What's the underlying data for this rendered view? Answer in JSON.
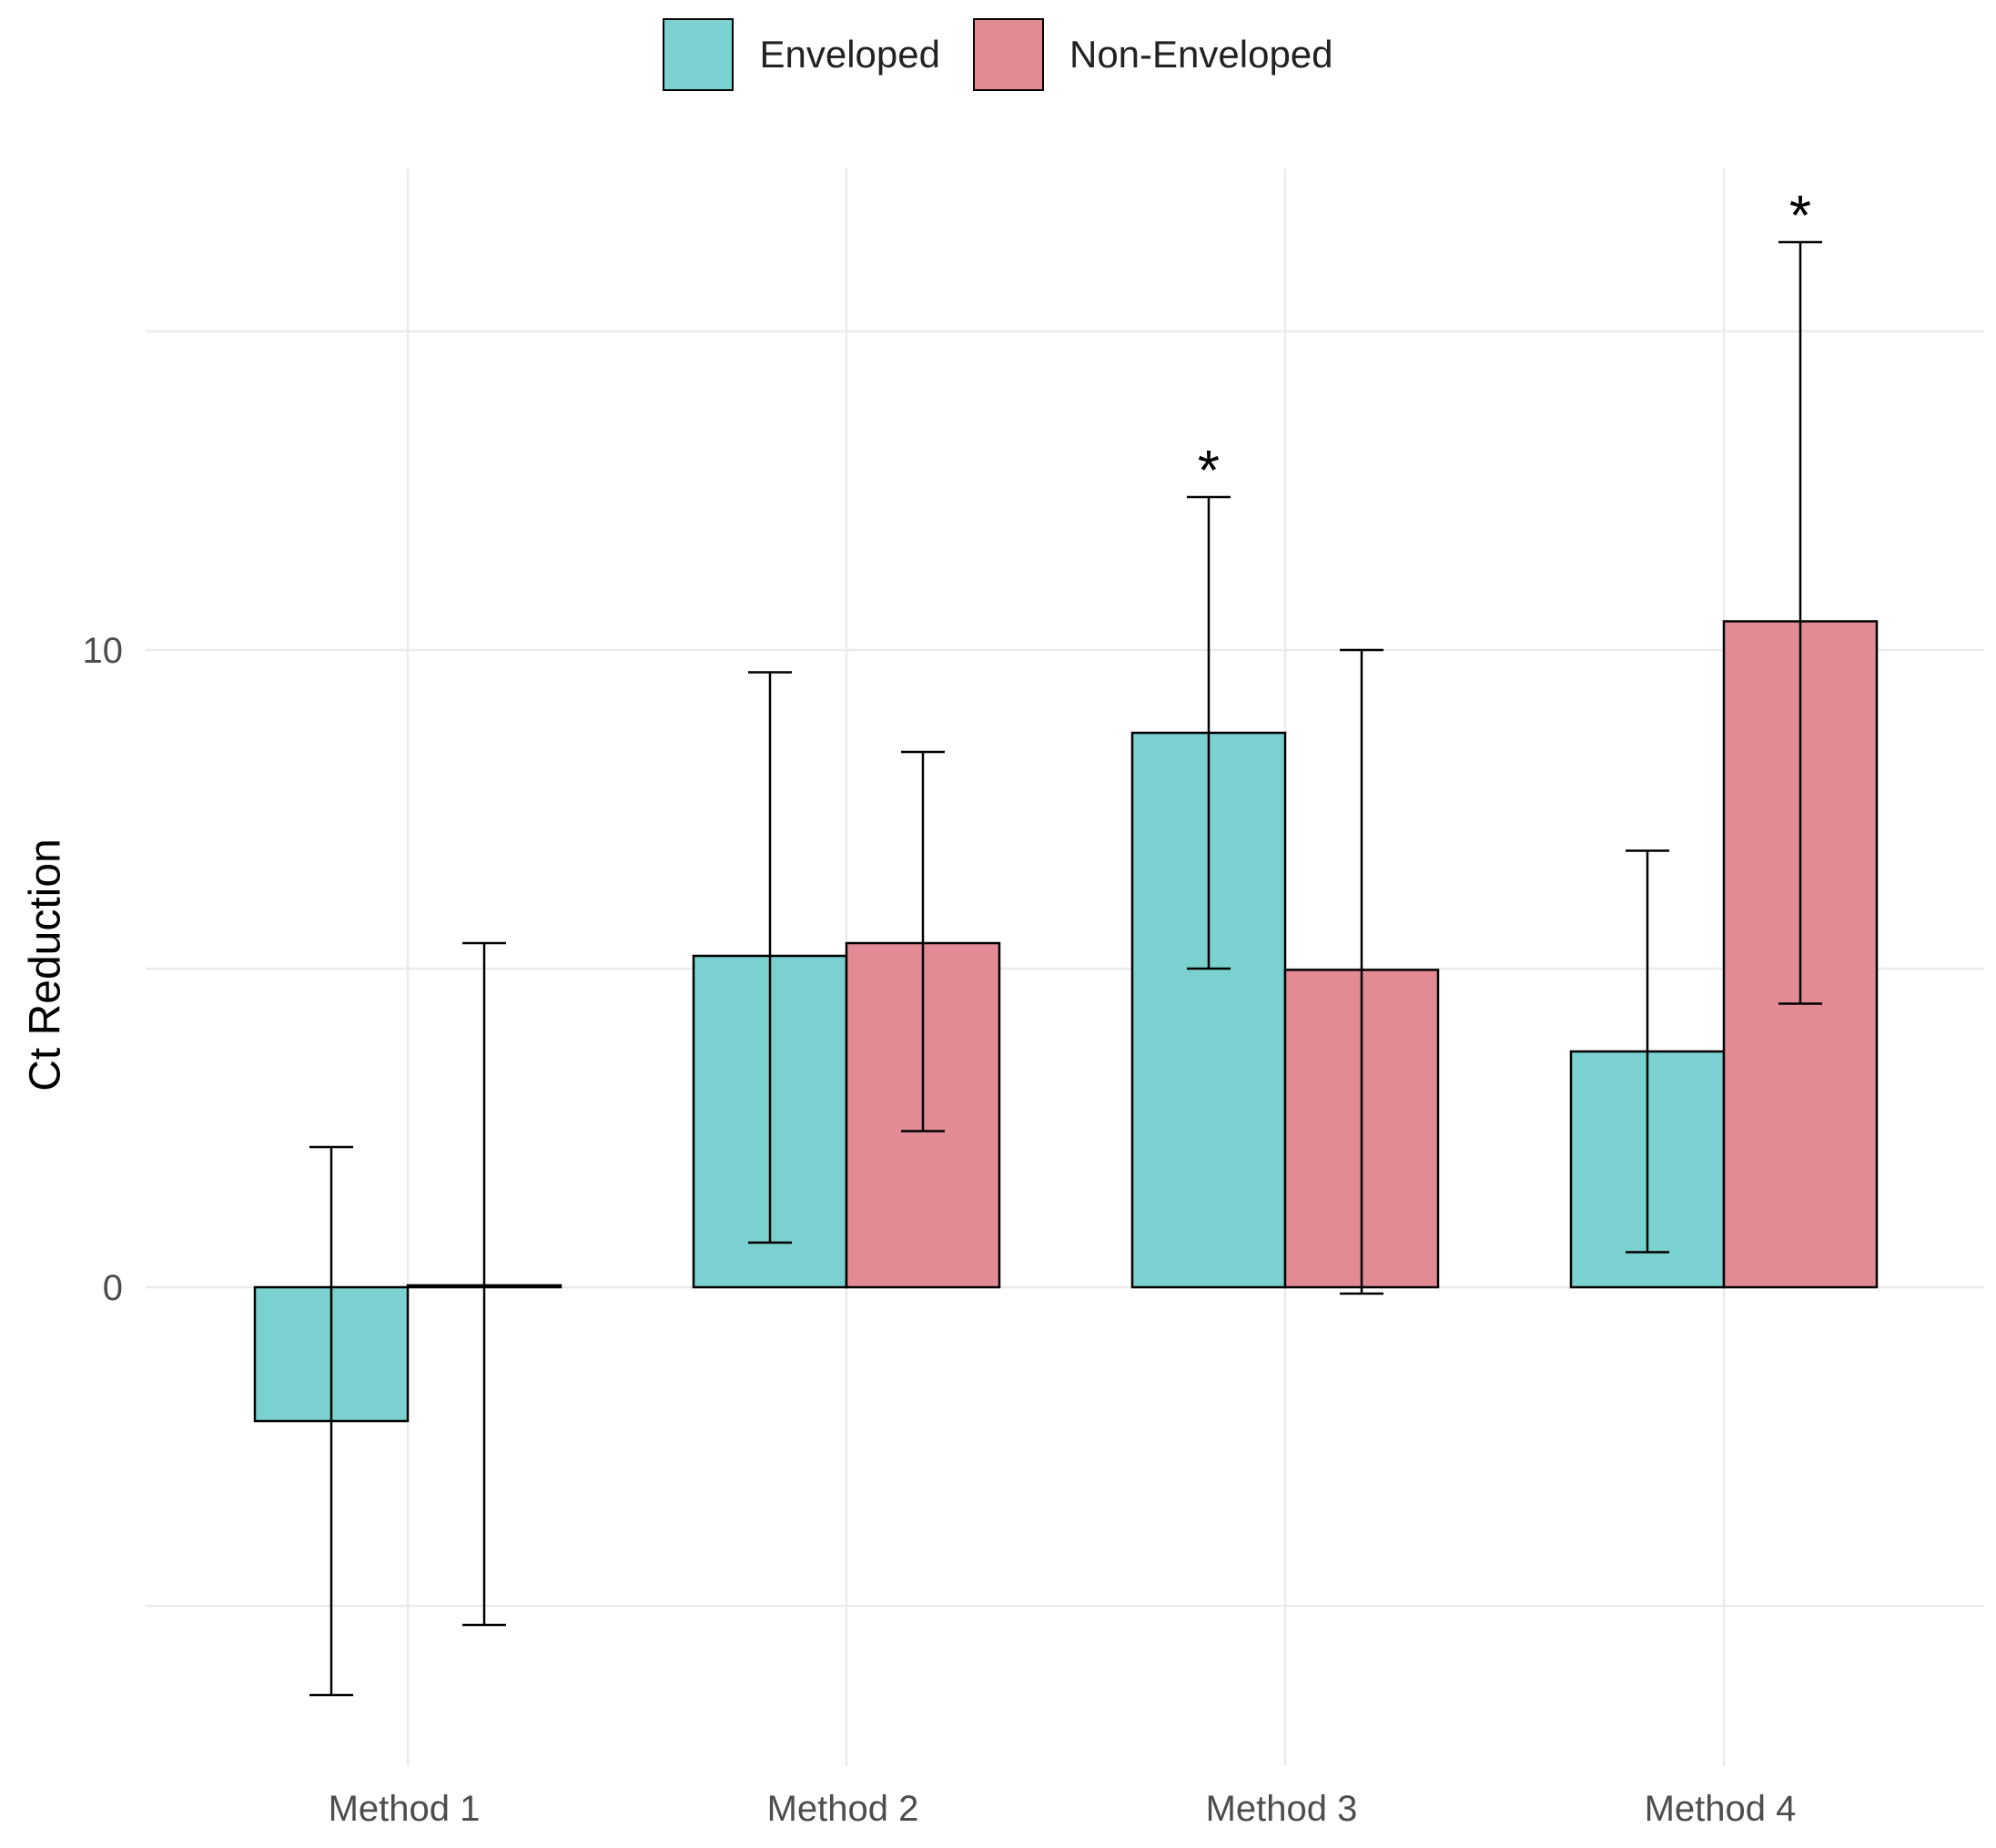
{
  "chart_data": {
    "type": "bar",
    "title": "",
    "xlabel": "",
    "ylabel": "Ct Reduction",
    "ylim": [
      -7.4,
      17.5
    ],
    "yticks": [
      0,
      10
    ],
    "grid": true,
    "legend_position": "top",
    "categories": [
      "Method 1",
      "Method 2",
      "Method 3",
      "Method 4"
    ],
    "series": [
      {
        "name": "Enveloped",
        "color": "#7ad1cf",
        "values": [
          -2.1,
          5.2,
          8.7,
          3.7
        ],
        "error_low": [
          -6.4,
          0.7,
          5.0,
          0.55
        ],
        "error_high": [
          2.2,
          9.65,
          12.4,
          6.85
        ],
        "significant": [
          false,
          false,
          true,
          false
        ]
      },
      {
        "name": "Non-Enveloped",
        "color": "#e38b95",
        "values": [
          0.03,
          5.4,
          4.98,
          10.45
        ],
        "error_low": [
          -5.3,
          2.45,
          -0.1,
          4.45
        ],
        "error_high": [
          5.4,
          8.4,
          10.0,
          16.4
        ],
        "significant": [
          false,
          false,
          false,
          true
        ]
      }
    ],
    "significance_marker": "*"
  }
}
